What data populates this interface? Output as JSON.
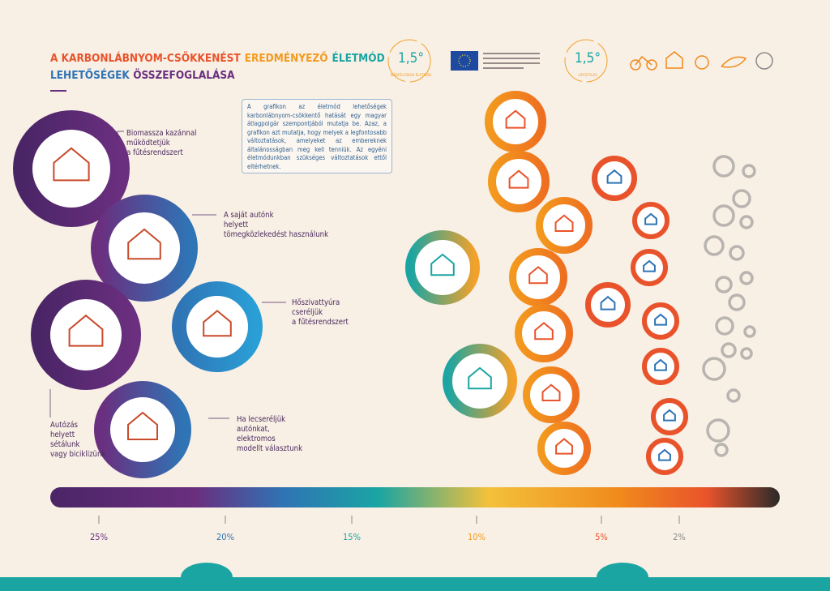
{
  "header": {
    "title_line1": [
      {
        "text": "A KARBONLÁBNYOM-CSÖKKENÉST",
        "color": "#e9532b"
      },
      {
        "text": "EREDMÉNYEZŐ",
        "color": "#f39a1e"
      },
      {
        "text": "ÉLETMÓD",
        "color": "#1aa5a3"
      }
    ],
    "title_line2": [
      {
        "text": "LEHETŐSÉGEK",
        "color": "#2f74b5"
      },
      {
        "text": "ÖSSZEFOGLALÁSA",
        "color": "#6a2f7f"
      }
    ]
  },
  "logos": [
    {
      "value": "1,5°",
      "caption": "MÁSFÉLFOKOS ÉLETMÓD"
    },
    {
      "value": "1,5°",
      "caption": "LIFESTYLES"
    }
  ],
  "description": "A grafikon az életmód lehetőségek karbonlábnyom-csökkentő hatását egy magyar átlagpolgár szempontjából mutatja be. Azaz, a grafikon azt mutatja, hogy melyek a legfontosabb változtatások, amelyeket az embereknek általánosságban meg kell tenniük. Az egyéni életmódunkban szükséges változtatások ettől eltérhetnek.",
  "options": [
    {
      "label": "Biomassza kazánnal működtetjük a fűtésrendszert"
    },
    {
      "label": "A saját autónk helyett tömegközlekedést használunk"
    },
    {
      "label": "Hőszivattyúra cseréljük a fűtésrendszert"
    },
    {
      "label": "Autózás helyett sétálunk vagy biciklizünk"
    },
    {
      "label": "Ha lecseréljük autónkat, elektromos modellt választunk"
    }
  ],
  "scale": {
    "ticks": [
      {
        "label": "25%",
        "color": "#6a2f7f"
      },
      {
        "label": "20%",
        "color": "#2f74b5"
      },
      {
        "label": "15%",
        "color": "#1aa5a3"
      },
      {
        "label": "10%",
        "color": "#f39a1e"
      },
      {
        "label": "5%",
        "color": "#e9532b"
      },
      {
        "label": "2%",
        "color": "#8a8a8a"
      }
    ]
  }
}
